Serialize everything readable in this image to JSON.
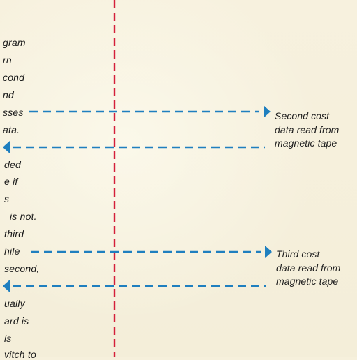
{
  "left_column_fragments": [
    "gram",
    "rn",
    "cond",
    "nd",
    "sses",
    "ata.",
    "ded",
    "e if",
    "s",
    "is not.",
    "third",
    "hile",
    "second,",
    "ually",
    "ard is",
    "is",
    "vitch to"
  ],
  "right_captions": {
    "second_cost": [
      "Second cost",
      "data read from",
      "magnetic tape"
    ],
    "third_cost": [
      "Third cost",
      "data read from",
      "magnetic tape"
    ]
  },
  "colors": {
    "paper": "#f6f0dc",
    "dashed_flow_line": "#1f7fbf",
    "dividing_line": "#d41f3a",
    "text": "#1a1a1a"
  }
}
